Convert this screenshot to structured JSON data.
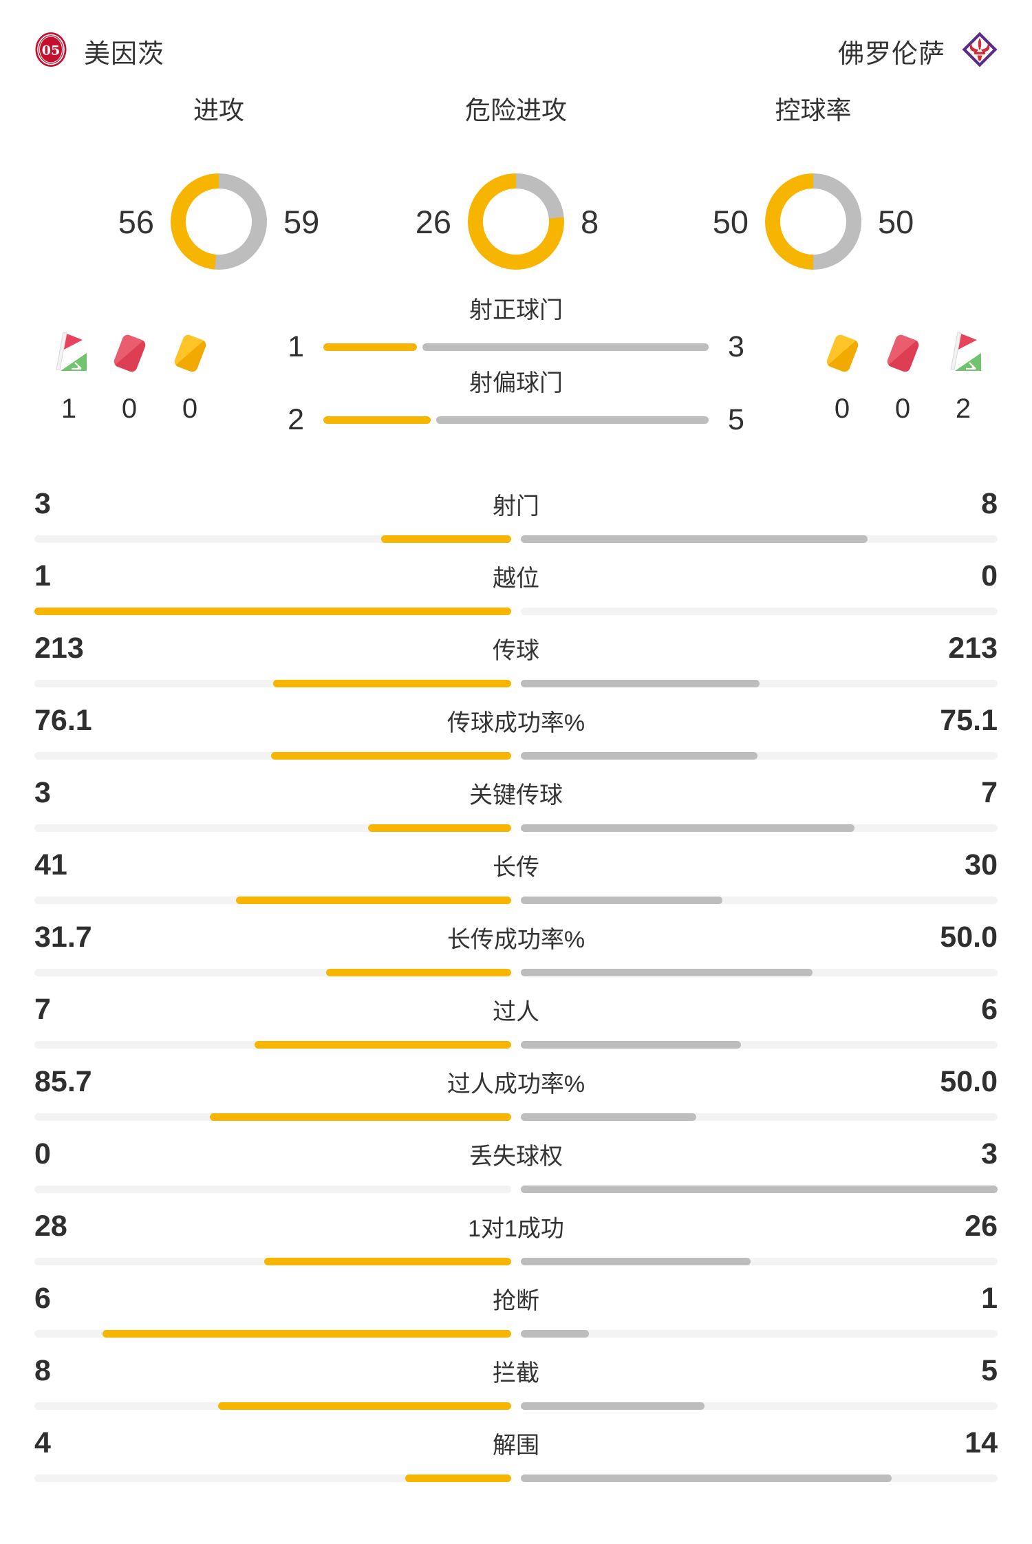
{
  "header": {
    "home_team": "美因茨",
    "away_team": "佛罗伦萨"
  },
  "colors": {
    "accent_yellow": "#F8B500",
    "bar_gray": "#BDBDBD",
    "track_light_gray": "#F3F3F3",
    "text_dark": "#2F2F2F",
    "red_card": "#E2495B",
    "yellow_card": "#F7B500",
    "corner_flag_green": "#72C36E",
    "mainz_red": "#C3102F",
    "fiorentina_purple": "#5B2D87"
  },
  "overview_donuts": [
    {
      "label": "进攻",
      "home": 56,
      "away": 59
    },
    {
      "label": "危险进攻",
      "home": 26,
      "away": 8
    },
    {
      "label": "控球率",
      "home": 50,
      "away": 50
    }
  ],
  "discipline": {
    "home": [
      {
        "icon": "corner-flag",
        "value": "1"
      },
      {
        "icon": "red-card",
        "value": "0"
      },
      {
        "icon": "yellow-card",
        "value": "0"
      }
    ],
    "away": [
      {
        "icon": "yellow-card",
        "value": "0"
      },
      {
        "icon": "red-card",
        "value": "0"
      },
      {
        "icon": "corner-flag",
        "value": "2"
      }
    ]
  },
  "shot_rows": [
    {
      "label": "射正球门",
      "home": "1",
      "away": "3"
    },
    {
      "label": "射偏球门",
      "home": "2",
      "away": "5"
    }
  ],
  "stat_rows": [
    {
      "label": "射门",
      "home": "3",
      "away": "8"
    },
    {
      "label": "越位",
      "home": "1",
      "away": "0"
    },
    {
      "label": "传球",
      "home": "213",
      "away": "213"
    },
    {
      "label": "传球成功率%",
      "home": "76.1",
      "away": "75.1"
    },
    {
      "label": "关键传球",
      "home": "3",
      "away": "7"
    },
    {
      "label": "长传",
      "home": "41",
      "away": "30"
    },
    {
      "label": "长传成功率%",
      "home": "31.7",
      "away": "50.0"
    },
    {
      "label": "过人",
      "home": "7",
      "away": "6"
    },
    {
      "label": "过人成功率%",
      "home": "85.7",
      "away": "50.0"
    },
    {
      "label": "丢失球权",
      "home": "0",
      "away": "3"
    },
    {
      "label": "1对1成功",
      "home": "28",
      "away": "26"
    },
    {
      "label": "抢断",
      "home": "6",
      "away": "1"
    },
    {
      "label": "拦截",
      "home": "8",
      "away": "5"
    },
    {
      "label": "解围",
      "home": "4",
      "away": "14"
    }
  ],
  "chart_data": {
    "type": "bar",
    "title": "美因茨 vs 佛罗伦萨 比赛统计",
    "legend": [
      "美因茨",
      "佛罗伦萨"
    ],
    "categories": [
      "进攻",
      "危险进攻",
      "控球率",
      "角球",
      "红牌",
      "黄牌",
      "射正球门",
      "射偏球门",
      "射门",
      "越位",
      "传球",
      "传球成功率%",
      "关键传球",
      "长传",
      "长传成功率%",
      "过人",
      "过人成功率%",
      "丢失球权",
      "1对1成功",
      "抢断",
      "拦截",
      "解围"
    ],
    "series": [
      {
        "name": "美因茨",
        "values": [
          56,
          26,
          50,
          1,
          0,
          0,
          1,
          2,
          3,
          1,
          213,
          76.1,
          3,
          41,
          31.7,
          7,
          85.7,
          0,
          28,
          6,
          8,
          4
        ]
      },
      {
        "name": "佛罗伦萨",
        "values": [
          59,
          8,
          50,
          2,
          0,
          0,
          3,
          5,
          8,
          0,
          213,
          75.1,
          7,
          30,
          50.0,
          6,
          50.0,
          3,
          26,
          1,
          5,
          14
        ]
      }
    ]
  }
}
